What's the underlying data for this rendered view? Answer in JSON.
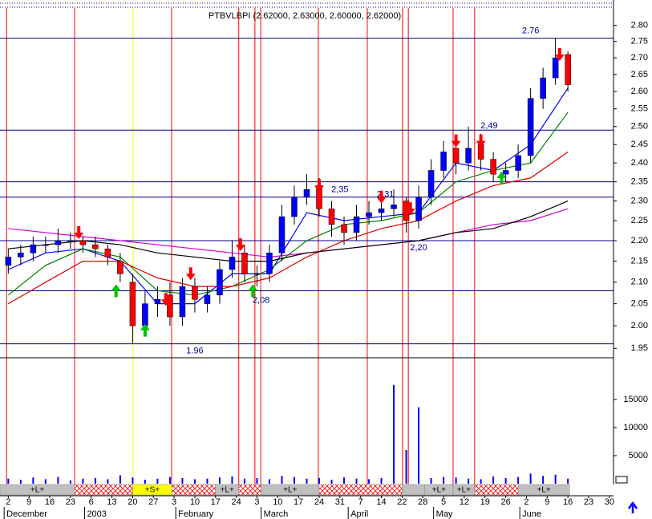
{
  "chart_data": [
    {
      "type": "candlestick",
      "title": "PTBVLBPI (2.62000, 2.63000, 2.60000, 2.62000)",
      "x": [
        0,
        3,
        6,
        9,
        12,
        15,
        18,
        21,
        24,
        27,
        30,
        33,
        36,
        39,
        42,
        45,
        48,
        51,
        54,
        57,
        60,
        63,
        66,
        69,
        72,
        75,
        78,
        81,
        84,
        87,
        90,
        93,
        96,
        99,
        102,
        105,
        108,
        111,
        114,
        117,
        120,
        123,
        126,
        129,
        132,
        135
      ],
      "open": [
        2.14,
        2.16,
        2.17,
        2.19,
        2.19,
        2.2,
        2.2,
        2.19,
        2.18,
        2.15,
        2.1,
        2.0,
        2.05,
        2.07,
        2.02,
        2.09,
        2.05,
        2.07,
        2.13,
        2.17,
        2.12,
        2.12,
        2.17,
        2.26,
        2.31,
        2.34,
        2.28,
        2.24,
        2.22,
        2.26,
        2.27,
        2.28,
        2.3,
        2.25,
        2.31,
        2.38,
        2.44,
        2.4,
        2.45,
        2.41,
        2.37,
        2.38,
        2.42,
        2.58,
        2.64,
        2.71
      ],
      "high": [
        2.18,
        2.19,
        2.21,
        2.21,
        2.23,
        2.22,
        2.21,
        2.21,
        2.19,
        2.17,
        2.12,
        2.08,
        2.09,
        2.1,
        2.11,
        2.11,
        2.09,
        2.15,
        2.2,
        2.19,
        2.14,
        2.19,
        2.29,
        2.34,
        2.37,
        2.36,
        2.3,
        2.26,
        2.29,
        2.3,
        2.31,
        2.33,
        2.31,
        2.34,
        2.41,
        2.46,
        2.47,
        2.5,
        2.48,
        2.43,
        2.4,
        2.45,
        2.61,
        2.67,
        2.76,
        2.72
      ],
      "low": [
        2.12,
        2.14,
        2.15,
        2.17,
        2.17,
        2.18,
        2.17,
        2.16,
        2.14,
        2.1,
        1.96,
        1.98,
        2.02,
        2.0,
        2.0,
        2.03,
        2.03,
        2.05,
        2.11,
        2.1,
        2.09,
        2.1,
        2.15,
        2.24,
        2.29,
        2.26,
        2.21,
        2.19,
        2.2,
        2.24,
        2.25,
        2.26,
        2.22,
        2.23,
        2.29,
        2.36,
        2.37,
        2.38,
        2.38,
        2.35,
        2.35,
        2.36,
        2.4,
        2.55,
        2.62,
        2.6
      ],
      "close": [
        2.16,
        2.17,
        2.19,
        2.19,
        2.2,
        2.2,
        2.19,
        2.18,
        2.16,
        2.12,
        2.0,
        2.05,
        2.06,
        2.02,
        2.09,
        2.06,
        2.07,
        2.13,
        2.16,
        2.12,
        2.12,
        2.17,
        2.26,
        2.31,
        2.33,
        2.28,
        2.24,
        2.22,
        2.26,
        2.27,
        2.28,
        2.29,
        2.25,
        2.31,
        2.38,
        2.43,
        2.4,
        2.44,
        2.41,
        2.37,
        2.38,
        2.42,
        2.58,
        2.64,
        2.7,
        2.62
      ],
      "up_color": "#0000ff",
      "down_color": "#ff0000",
      "moving_averages": [
        {
          "color": "#0000ff",
          "x": [
            0,
            9,
            18,
            27,
            36,
            45,
            54,
            63,
            72,
            81,
            90,
            99,
            108,
            117,
            126,
            135
          ],
          "values": [
            2.13,
            2.17,
            2.18,
            2.15,
            2.05,
            2.05,
            2.12,
            2.12,
            2.27,
            2.25,
            2.26,
            2.27,
            2.4,
            2.38,
            2.45,
            2.61
          ]
        },
        {
          "color": "#008000",
          "x": [
            0,
            9,
            18,
            27,
            36,
            45,
            54,
            63,
            72,
            81,
            90,
            99,
            108,
            117,
            126,
            135
          ],
          "values": [
            2.07,
            2.14,
            2.18,
            2.16,
            2.08,
            2.07,
            2.09,
            2.13,
            2.2,
            2.24,
            2.25,
            2.27,
            2.35,
            2.38,
            2.4,
            2.54
          ]
        },
        {
          "color": "#e00000",
          "x": [
            0,
            9,
            18,
            27,
            36,
            45,
            54,
            63,
            72,
            81,
            90,
            99,
            108,
            117,
            126,
            135
          ],
          "values": [
            2.05,
            2.1,
            2.15,
            2.15,
            2.11,
            2.09,
            2.09,
            2.11,
            2.16,
            2.2,
            2.23,
            2.25,
            2.3,
            2.34,
            2.36,
            2.43
          ]
        },
        {
          "color": "#d000d0",
          "x": [
            0,
            9,
            18,
            27,
            36,
            45,
            54,
            63,
            72,
            81,
            90,
            99,
            108,
            117,
            126,
            135
          ],
          "values": [
            2.23,
            2.22,
            2.21,
            2.2,
            2.19,
            2.18,
            2.17,
            2.16,
            2.17,
            2.18,
            2.19,
            2.2,
            2.22,
            2.24,
            2.25,
            2.28
          ]
        },
        {
          "color": "#000000",
          "x": [
            0,
            9,
            18,
            27,
            36,
            45,
            54,
            63,
            72,
            81,
            90,
            99,
            108,
            117,
            126,
            135
          ],
          "values": [
            2.18,
            2.19,
            2.2,
            2.19,
            2.17,
            2.16,
            2.15,
            2.15,
            2.17,
            2.18,
            2.19,
            2.2,
            2.22,
            2.23,
            2.26,
            2.3
          ]
        }
      ],
      "levels": {
        "color": "#000080",
        "values": [
          2.76,
          2.49,
          2.35,
          2.31,
          2.2,
          2.08,
          1.96
        ],
        "value_labels": [
          "2.76",
          "2,49",
          "2,35",
          "2,31",
          "2,20",
          "2,08",
          "1.96"
        ]
      },
      "signals": {
        "down": {
          "color": "#ff0000",
          "x": [
            17,
            38,
            44,
            56,
            75,
            90,
            97,
            108,
            114,
            133
          ],
          "values": [
            2.22,
            2.06,
            2.12,
            2.19,
            2.34,
            2.31,
            2.28,
            2.46,
            2.46,
            2.71
          ]
        },
        "up": {
          "color": "#00c000",
          "x": [
            26,
            33,
            59,
            119
          ],
          "values": [
            2.08,
            1.99,
            2.08,
            2.36
          ]
        }
      },
      "event_lines": {
        "color": "#ff0000",
        "x": [
          -0.4,
          16,
          39.4,
          55.6,
          59.5,
          60.9,
          74.8,
          86.6,
          95.1,
          96.5,
          107.3,
          112.5
        ]
      },
      "highlight_line": {
        "color": "#ffff00",
        "x": 30.1
      },
      "log_scale": true,
      "xlim": [
        -2,
        146
      ],
      "ylim": [
        1.94,
        2.86
      ],
      "yticks": [
        {
          "value": 2.8,
          "label": "2.80"
        },
        {
          "value": 2.75,
          "label": "2.75"
        },
        {
          "value": 2.7,
          "label": "2.70"
        },
        {
          "value": 2.65,
          "label": "2.65"
        },
        {
          "value": 2.6,
          "label": "2.60"
        },
        {
          "value": 2.55,
          "label": "2.55"
        },
        {
          "value": 2.5,
          "label": "2.50"
        },
        {
          "value": 2.45,
          "label": "2.45"
        },
        {
          "value": 2.4,
          "label": "2.40"
        },
        {
          "value": 2.35,
          "label": "2.35"
        },
        {
          "value": 2.3,
          "label": "2.30"
        },
        {
          "value": 2.25,
          "label": "2.25"
        },
        {
          "value": 2.2,
          "label": "2.20"
        },
        {
          "value": 2.15,
          "label": "2.15"
        },
        {
          "value": 2.1,
          "label": "2.10"
        },
        {
          "value": 2.05,
          "label": "2.05"
        },
        {
          "value": 2.0,
          "label": "2.00"
        },
        {
          "value": 1.95,
          "label": "1.95"
        }
      ]
    },
    {
      "type": "bar",
      "x": [
        0,
        3,
        6,
        9,
        12,
        15,
        18,
        21,
        24,
        27,
        30,
        33,
        36,
        39,
        42,
        45,
        48,
        51,
        54,
        57,
        60,
        63,
        66,
        69,
        72,
        75,
        78,
        81,
        84,
        87,
        90,
        93,
        96,
        99,
        102,
        105,
        108,
        111,
        114,
        117,
        120,
        123,
        126,
        129,
        132,
        135
      ],
      "values": [
        900,
        700,
        1100,
        800,
        1200,
        600,
        900,
        1000,
        800,
        1500,
        1100,
        700,
        900,
        1200,
        1000,
        800,
        900,
        1100,
        1300,
        900,
        1000,
        800,
        1400,
        1200,
        900,
        1000,
        700,
        1100,
        900,
        800,
        1000,
        17600,
        6000,
        13600,
        1000,
        1200,
        1100,
        900,
        800,
        1300,
        1000,
        1200,
        1800,
        1400,
        1600,
        900
      ],
      "color": "#0000ff",
      "xlim": [
        -2,
        146
      ],
      "ylim": [
        0,
        20000
      ],
      "yticks": [
        5000,
        10000,
        15000
      ],
      "xticks": [
        {
          "value": 0,
          "label": "2"
        },
        {
          "value": 5,
          "label": "9"
        },
        {
          "value": 10,
          "label": "16"
        },
        {
          "value": 15,
          "label": "23"
        },
        {
          "value": 20,
          "label": "6"
        },
        {
          "value": 25,
          "label": "13"
        },
        {
          "value": 30,
          "label": "20"
        },
        {
          "value": 35,
          "label": "27"
        },
        {
          "value": 40,
          "label": "3"
        },
        {
          "value": 45,
          "label": "10"
        },
        {
          "value": 50,
          "label": "17"
        },
        {
          "value": 55,
          "label": "24"
        },
        {
          "value": 60,
          "label": "3"
        },
        {
          "value": 65,
          "label": "10"
        },
        {
          "value": 70,
          "label": "17"
        },
        {
          "value": 75,
          "label": "24"
        },
        {
          "value": 80,
          "label": "31"
        },
        {
          "value": 85,
          "label": "7"
        },
        {
          "value": 90,
          "label": "14"
        },
        {
          "value": 95,
          "label": "22"
        },
        {
          "value": 100,
          "label": "28"
        },
        {
          "value": 105,
          "label": "5"
        },
        {
          "value": 110,
          "label": "12"
        },
        {
          "value": 115,
          "label": "19"
        },
        {
          "value": 120,
          "label": "26"
        },
        {
          "value": 125,
          "label": "2"
        },
        {
          "value": 130,
          "label": "9"
        },
        {
          "value": 135,
          "label": "16"
        },
        {
          "value": 140,
          "label": "23"
        },
        {
          "value": 145,
          "label": "30"
        }
      ],
      "month_ticks": [
        {
          "value": -1,
          "label": "December"
        },
        {
          "value": 18.4,
          "label": "2003"
        },
        {
          "value": 40.4,
          "label": "February"
        },
        {
          "value": 61,
          "label": "March"
        },
        {
          "value": 82,
          "label": "April"
        },
        {
          "value": 102.6,
          "label": "May"
        },
        {
          "value": 123.4,
          "label": "June"
        }
      ],
      "bands": {
        "start": [
          -2,
          16,
          30,
          39.5,
          50,
          55.6,
          61,
          75,
          95,
          100.5,
          107.3,
          112.5,
          123
        ],
        "end": [
          16,
          30,
          39.5,
          50,
          55.6,
          61,
          75,
          95,
          100.5,
          107.3,
          112.5,
          123,
          135.4
        ],
        "labels": [
          "+L+",
          null,
          "+S+",
          null,
          "+L+",
          null,
          "+L+",
          null,
          null,
          "+L+",
          "+L+",
          null,
          "+L+"
        ],
        "colors": [
          "#c0c0c0",
          "#ff0000",
          "#ffff00",
          "#ff0000",
          "#c0c0c0",
          "#ff0000",
          "#c0c0c0",
          "#ff0000",
          "#c0c0c0",
          "#c0c0c0",
          "#c0c0c0",
          "#ff0000",
          "#c0c0c0"
        ]
      }
    }
  ]
}
